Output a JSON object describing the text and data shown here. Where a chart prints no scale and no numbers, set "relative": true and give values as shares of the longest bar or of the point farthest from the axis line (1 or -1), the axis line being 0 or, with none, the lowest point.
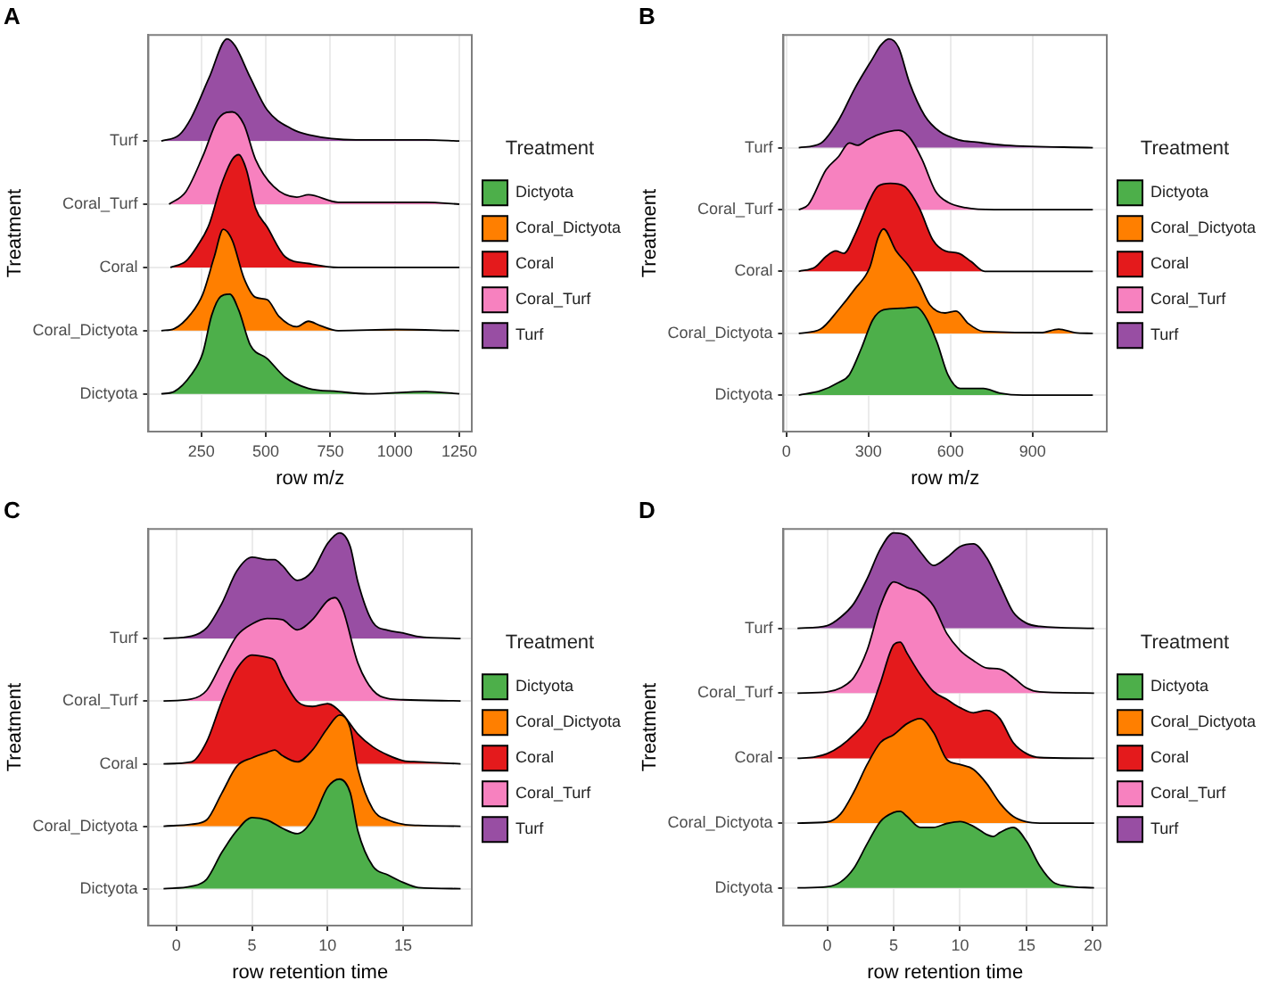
{
  "chart_data": [
    {
      "type": "area",
      "relative": true,
      "title": "A",
      "xlabel": "row m/z",
      "ylabel": "Treatment",
      "legend_title": "Treatment",
      "legend": "right",
      "grid": true,
      "marker": "none",
      "xlim": [
        45,
        1298
      ],
      "xticks": [
        250,
        500,
        750,
        1000,
        1250
      ],
      "y_categories": [
        "Turf",
        "Coral_Turf",
        "Coral",
        "Coral_Dictyota",
        "Dictyota"
      ],
      "series": [
        {
          "name": "Dictyota",
          "color": "#4daf4a",
          "x": [
            95,
            145,
            210,
            255,
            290,
            325,
            360,
            395,
            440,
            505,
            575,
            665,
            780,
            895,
            1120,
            1250
          ],
          "values": [
            0.096,
            0.102,
            0.144,
            0.199,
            0.296,
            0.344,
            0.35,
            0.309,
            0.22,
            0.186,
            0.138,
            0.11,
            0.102,
            0.096,
            0.102,
            0.096
          ]
        },
        {
          "name": "Coral_Dictyota",
          "color": "#ff7f00",
          "x": [
            95,
            145,
            210,
            255,
            300,
            335,
            370,
            415,
            460,
            505,
            550,
            620,
            665,
            710,
            780,
            1005,
            1250
          ],
          "values": [
            0.257,
            0.262,
            0.3,
            0.349,
            0.445,
            0.515,
            0.487,
            0.391,
            0.342,
            0.336,
            0.294,
            0.267,
            0.281,
            0.27,
            0.257,
            0.26,
            0.257
          ]
        },
        {
          "name": "Coral",
          "color": "#e41a1c",
          "x": [
            130,
            190,
            235,
            280,
            325,
            370,
            395,
            425,
            460,
            505,
            575,
            665,
            780,
            1250
          ],
          "values": [
            0.418,
            0.434,
            0.473,
            0.527,
            0.624,
            0.693,
            0.705,
            0.666,
            0.569,
            0.521,
            0.445,
            0.428,
            0.418,
            0.418
          ]
        },
        {
          "name": "Coral_Turf",
          "color": "#f781bf",
          "x": [
            125,
            190,
            255,
            315,
            370,
            415,
            460,
            530,
            620,
            665,
            780,
            1120,
            1250
          ],
          "values": [
            0.579,
            0.611,
            0.7,
            0.796,
            0.814,
            0.782,
            0.693,
            0.624,
            0.597,
            0.603,
            0.584,
            0.584,
            0.579
          ]
        },
        {
          "name": "Turf",
          "color": "#984ea3",
          "x": [
            95,
            165,
            210,
            280,
            350,
            380,
            440,
            505,
            600,
            665,
            850,
            1120,
            1250
          ],
          "values": [
            0.74,
            0.756,
            0.798,
            0.901,
            1,
            0.983,
            0.901,
            0.819,
            0.771,
            0.756,
            0.743,
            0.743,
            0.74
          ]
        }
      ]
    },
    {
      "type": "area",
      "relative": true,
      "title": "B",
      "xlabel": "row m/z",
      "ylabel": "Treatment",
      "legend_title": "Treatment",
      "legend": "right",
      "grid": true,
      "marker": "none",
      "xlim": [
        -11,
        1171
      ],
      "xticks": [
        0,
        300,
        600,
        900
      ],
      "y_categories": [
        "Turf",
        "Coral_Turf",
        "Coral",
        "Coral_Dictyota",
        "Dictyota"
      ],
      "series": [
        {
          "name": "Dictyota",
          "color": "#4daf4a",
          "x": [
            45,
            125,
            190,
            230,
            275,
            315,
            355,
            420,
            475,
            505,
            550,
            590,
            635,
            720,
            780,
            865,
            1120
          ],
          "values": [
            0.093,
            0.104,
            0.125,
            0.145,
            0.214,
            0.284,
            0.31,
            0.314,
            0.317,
            0.296,
            0.228,
            0.145,
            0.11,
            0.11,
            0.098,
            0.093,
            0.093
          ]
        },
        {
          "name": "Coral_Dictyota",
          "color": "#ff7f00",
          "x": [
            45,
            125,
            190,
            250,
            305,
            335,
            355,
            400,
            450,
            485,
            525,
            580,
            620,
            665,
            720,
            930,
            995,
            1055,
            1120
          ],
          "values": [
            0.25,
            0.261,
            0.31,
            0.363,
            0.419,
            0.494,
            0.516,
            0.461,
            0.419,
            0.378,
            0.322,
            0.302,
            0.307,
            0.275,
            0.255,
            0.252,
            0.261,
            0.252,
            0.25
          ]
        },
        {
          "name": "Coral",
          "color": "#e41a1c",
          "x": [
            45,
            105,
            145,
            180,
            210,
            250,
            305,
            335,
            380,
            430,
            485,
            535,
            580,
            630,
            675,
            725,
            1120
          ],
          "values": [
            0.408,
            0.419,
            0.446,
            0.46,
            0.454,
            0.501,
            0.591,
            0.625,
            0.632,
            0.625,
            0.57,
            0.488,
            0.46,
            0.454,
            0.433,
            0.408,
            0.408
          ]
        },
        {
          "name": "Coral_Turf",
          "color": "#f781bf",
          "x": [
            45,
            80,
            145,
            190,
            230,
            260,
            295,
            335,
            410,
            450,
            495,
            545,
            590,
            655,
            760,
            1120
          ],
          "values": [
            0.565,
            0.578,
            0.667,
            0.7,
            0.735,
            0.729,
            0.743,
            0.756,
            0.767,
            0.749,
            0.694,
            0.612,
            0.584,
            0.57,
            0.565,
            0.565
          ]
        },
        {
          "name": "Turf",
          "color": "#984ea3",
          "x": [
            45,
            125,
            190,
            250,
            315,
            345,
            375,
            410,
            450,
            505,
            560,
            630,
            695,
            800,
            1120
          ],
          "values": [
            0.723,
            0.734,
            0.792,
            0.874,
            0.95,
            0.984,
            1,
            0.978,
            0.888,
            0.805,
            0.764,
            0.743,
            0.737,
            0.729,
            0.723
          ]
        }
      ]
    },
    {
      "type": "area",
      "relative": true,
      "title": "C",
      "xlabel": "row retention time",
      "ylabel": "Treatment",
      "legend_title": "Treatment",
      "legend": "right",
      "grid": true,
      "marker": "none",
      "xlim": [
        -1.85,
        19.54
      ],
      "xticks": [
        0,
        5,
        10,
        15
      ],
      "y_categories": [
        "Turf",
        "Coral_Turf",
        "Coral",
        "Coral_Dictyota",
        "Dictyota"
      ],
      "series": [
        {
          "name": "Dictyota",
          "color": "#4daf4a",
          "x": [
            -0.85,
            1,
            2,
            3,
            4,
            5,
            6,
            7,
            8,
            9,
            10,
            10.8,
            11.5,
            12,
            13,
            14,
            15,
            16,
            18.8
          ],
          "values": [
            0.094,
            0.1,
            0.118,
            0.186,
            0.242,
            0.275,
            0.269,
            0.248,
            0.234,
            0.269,
            0.352,
            0.373,
            0.338,
            0.242,
            0.151,
            0.129,
            0.11,
            0.097,
            0.094
          ]
        },
        {
          "name": "Coral_Dictyota",
          "color": "#ff7f00",
          "x": [
            -0.85,
            1,
            2,
            3,
            4,
            5,
            6,
            6.5,
            7,
            8,
            9,
            10,
            10.8,
            11.5,
            12,
            13,
            14,
            15,
            16,
            18.8
          ],
          "values": [
            0.253,
            0.258,
            0.269,
            0.337,
            0.406,
            0.427,
            0.441,
            0.447,
            0.433,
            0.417,
            0.447,
            0.503,
            0.536,
            0.503,
            0.399,
            0.296,
            0.269,
            0.258,
            0.255,
            0.253
          ]
        },
        {
          "name": "Coral",
          "color": "#e41a1c",
          "x": [
            -0.85,
            1,
            2,
            3,
            4,
            5,
            6,
            6.5,
            7,
            8,
            9,
            10,
            11,
            12,
            13,
            14,
            15,
            16,
            18.8
          ],
          "values": [
            0.412,
            0.417,
            0.468,
            0.571,
            0.654,
            0.689,
            0.683,
            0.675,
            0.633,
            0.571,
            0.558,
            0.565,
            0.538,
            0.488,
            0.455,
            0.434,
            0.42,
            0.417,
            0.412
          ]
        },
        {
          "name": "Coral_Turf",
          "color": "#f781bf",
          "x": [
            -0.85,
            1,
            2,
            3,
            4,
            5,
            6,
            7,
            8,
            9,
            10,
            10.5,
            11,
            12,
            13,
            14,
            15,
            18.8
          ],
          "values": [
            0.572,
            0.577,
            0.599,
            0.669,
            0.738,
            0.768,
            0.782,
            0.779,
            0.753,
            0.779,
            0.827,
            0.835,
            0.806,
            0.669,
            0.599,
            0.578,
            0.575,
            0.572
          ]
        },
        {
          "name": "Turf",
          "color": "#984ea3",
          "x": [
            -0.85,
            1,
            2,
            3,
            4,
            5,
            6,
            6.5,
            7,
            8,
            9,
            10,
            10.8,
            11.5,
            12,
            13,
            14,
            15,
            16,
            18.8
          ],
          "values": [
            0.731,
            0.737,
            0.758,
            0.82,
            0.903,
            0.938,
            0.932,
            0.932,
            0.917,
            0.879,
            0.903,
            0.973,
            1,
            0.965,
            0.876,
            0.772,
            0.752,
            0.745,
            0.736,
            0.731
          ]
        }
      ]
    },
    {
      "type": "area",
      "relative": true,
      "title": "D",
      "xlabel": "row retention time",
      "ylabel": "Treatment",
      "legend_title": "Treatment",
      "legend": "right",
      "grid": true,
      "marker": "none",
      "xlim": [
        -3.3,
        21.05
      ],
      "xticks": [
        0,
        5,
        10,
        15,
        20
      ],
      "y_categories": [
        "Turf",
        "Coral_Turf",
        "Coral",
        "Coral_Dictyota",
        "Dictyota"
      ],
      "series": [
        {
          "name": "Dictyota",
          "color": "#4daf4a",
          "x": [
            -2.24,
            0,
            1,
            2,
            3,
            4,
            5,
            5.5,
            6,
            7,
            8,
            9,
            10,
            11,
            12,
            12.5,
            13,
            14,
            15,
            16,
            17,
            18,
            20.09
          ],
          "values": [
            0.096,
            0.099,
            0.111,
            0.146,
            0.208,
            0.265,
            0.288,
            0.291,
            0.278,
            0.25,
            0.25,
            0.26,
            0.265,
            0.253,
            0.232,
            0.227,
            0.237,
            0.25,
            0.215,
            0.152,
            0.111,
            0.101,
            0.096
          ]
        },
        {
          "name": "Coral_Dictyota",
          "color": "#ff7f00",
          "x": [
            -2.24,
            0,
            1,
            2,
            3,
            4,
            5,
            6,
            7,
            8,
            9,
            10,
            11,
            12,
            13,
            14,
            15,
            16,
            20.09
          ],
          "values": [
            0.261,
            0.264,
            0.284,
            0.34,
            0.41,
            0.466,
            0.486,
            0.514,
            0.527,
            0.492,
            0.423,
            0.41,
            0.398,
            0.362,
            0.312,
            0.278,
            0.264,
            0.261,
            0.261
          ]
        },
        {
          "name": "Coral",
          "color": "#e41a1c",
          "x": [
            -2.24,
            -1,
            0,
            1,
            2,
            3,
            4,
            5,
            5.5,
            6,
            7,
            8,
            9,
            10,
            11,
            12,
            13,
            14,
            15,
            16,
            20.09
          ],
          "values": [
            0.426,
            0.429,
            0.438,
            0.457,
            0.486,
            0.527,
            0.618,
            0.715,
            0.722,
            0.694,
            0.639,
            0.596,
            0.576,
            0.555,
            0.542,
            0.548,
            0.527,
            0.466,
            0.438,
            0.428,
            0.426
          ]
        },
        {
          "name": "Coral_Turf",
          "color": "#f781bf",
          "x": [
            -2.24,
            0,
            1,
            2,
            3,
            4,
            5,
            6,
            7,
            8,
            9,
            10,
            11,
            12,
            13,
            14,
            15,
            16,
            20.09
          ],
          "values": [
            0.592,
            0.595,
            0.605,
            0.632,
            0.701,
            0.814,
            0.875,
            0.861,
            0.848,
            0.814,
            0.744,
            0.701,
            0.675,
            0.656,
            0.653,
            0.632,
            0.605,
            0.595,
            0.592
          ]
        },
        {
          "name": "Turf",
          "color": "#984ea3",
          "x": [
            -2.24,
            0,
            1,
            2,
            3,
            4,
            5,
            6,
            7,
            8,
            9,
            10,
            11,
            12,
            13,
            14,
            15,
            16,
            20.09
          ],
          "values": [
            0.757,
            0.764,
            0.785,
            0.82,
            0.883,
            0.959,
            1,
            0.993,
            0.952,
            0.917,
            0.937,
            0.965,
            0.972,
            0.937,
            0.868,
            0.798,
            0.77,
            0.762,
            0.757
          ]
        }
      ]
    }
  ]
}
